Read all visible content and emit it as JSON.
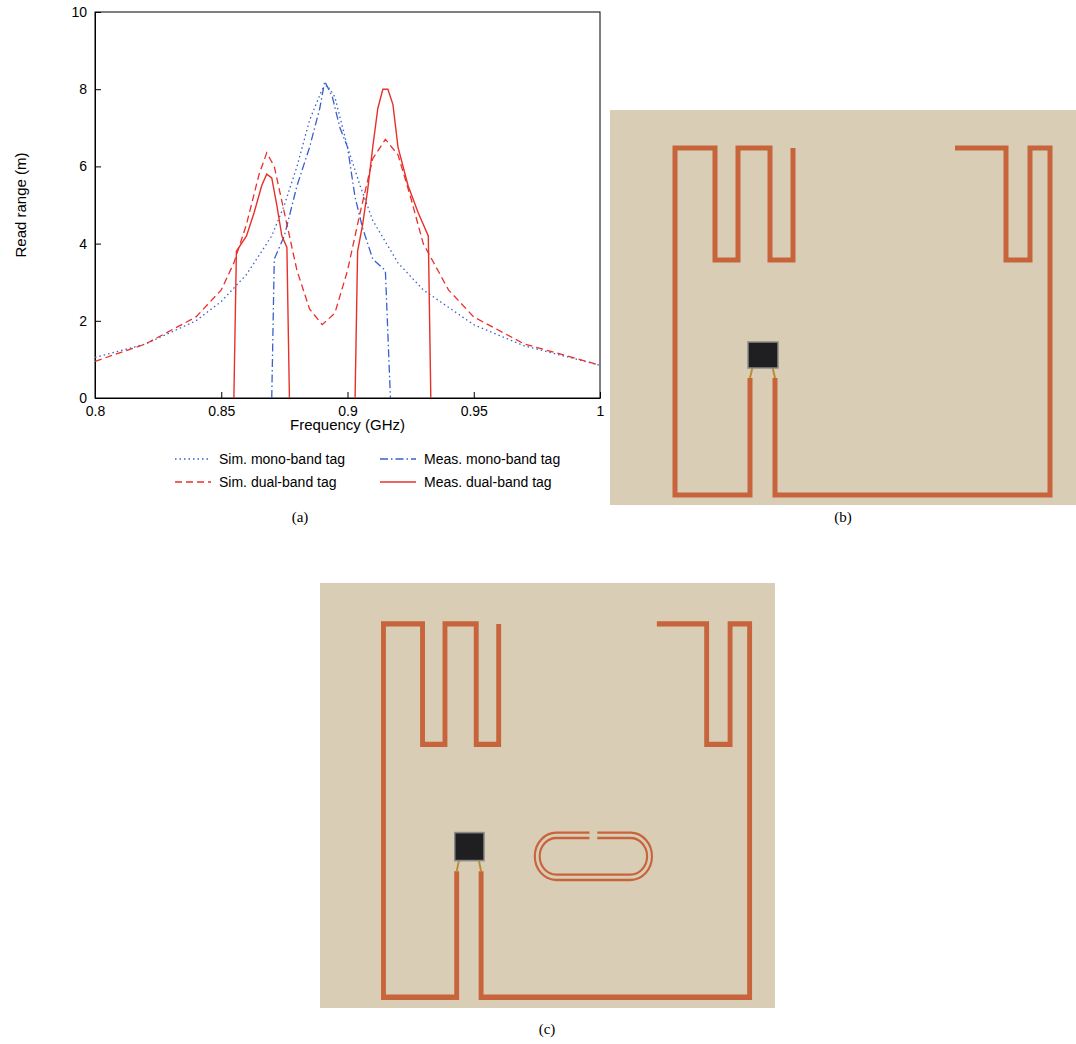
{
  "chart_data": {
    "type": "line",
    "xlabel": "Frequency (GHz)",
    "ylabel": "Read range (m)",
    "xlim": [
      0.8,
      1
    ],
    "ylim": [
      0,
      10
    ],
    "xticks": [
      0.8,
      0.85,
      0.9,
      0.95,
      1
    ],
    "yticks": [
      0,
      2,
      4,
      6,
      8,
      10
    ],
    "grid": false,
    "legend": "bottom",
    "series": [
      {
        "name": "Sim. mono-band tag",
        "color": "#3a5fcd",
        "line_style": "dotted",
        "x": [
          0.8,
          0.82,
          0.84,
          0.85,
          0.86,
          0.87,
          0.875,
          0.88,
          0.885,
          0.89,
          0.892,
          0.895,
          0.9,
          0.905,
          0.91,
          0.92,
          0.93,
          0.95,
          0.97,
          1.0
        ],
        "values": [
          1.05,
          1.4,
          2.0,
          2.5,
          3.2,
          4.2,
          5.0,
          6.0,
          7.2,
          8.0,
          8.1,
          7.8,
          6.5,
          5.5,
          4.6,
          3.5,
          2.8,
          1.9,
          1.35,
          0.85
        ]
      },
      {
        "name": "Meas. mono-band tag",
        "color": "#3a5fcd",
        "line_style": "dashdot",
        "x": [
          0.87,
          0.871,
          0.875,
          0.88,
          0.885,
          0.889,
          0.891,
          0.894,
          0.897,
          0.9,
          0.903,
          0.906,
          0.91,
          0.915,
          0.917
        ],
        "values": [
          0,
          3.6,
          4.2,
          5.5,
          6.5,
          7.5,
          8.2,
          7.8,
          7.0,
          6.5,
          5.2,
          4.4,
          3.6,
          3.3,
          0
        ]
      },
      {
        "name": "Sim. dual-band tag",
        "color": "#e8302a",
        "line_style": "dashed",
        "x": [
          0.8,
          0.82,
          0.84,
          0.85,
          0.855,
          0.86,
          0.865,
          0.868,
          0.871,
          0.875,
          0.88,
          0.885,
          0.89,
          0.895,
          0.9,
          0.905,
          0.91,
          0.915,
          0.92,
          0.925,
          0.93,
          0.94,
          0.95,
          0.97,
          1.0
        ],
        "values": [
          0.95,
          1.4,
          2.1,
          2.8,
          3.5,
          4.5,
          5.8,
          6.35,
          6.0,
          4.8,
          3.3,
          2.3,
          1.9,
          2.2,
          3.3,
          4.8,
          6.2,
          6.7,
          6.3,
          5.2,
          4.0,
          2.8,
          2.1,
          1.4,
          0.85
        ]
      },
      {
        "name": "Meas. dual-band tag",
        "color": "#e8302a",
        "line_style": "solid",
        "x": [
          0.855,
          0.856,
          0.86,
          0.863,
          0.866,
          0.868,
          0.87,
          0.872,
          0.874,
          0.876,
          0.877,
          0.89,
          0.903,
          0.904,
          0.906,
          0.908,
          0.91,
          0.912,
          0.914,
          0.916,
          0.918,
          0.92,
          0.924,
          0.928,
          0.932,
          0.933
        ],
        "values": [
          0,
          3.8,
          4.2,
          4.8,
          5.5,
          5.8,
          5.7,
          5.0,
          4.2,
          3.9,
          0,
          null,
          0,
          3.8,
          4.5,
          5.4,
          6.5,
          7.5,
          8.0,
          8.0,
          7.6,
          6.5,
          5.5,
          4.8,
          4.2,
          0
        ]
      }
    ]
  },
  "panel_labels": {
    "a": "(a)",
    "b": "(b)",
    "c": "(c)"
  }
}
